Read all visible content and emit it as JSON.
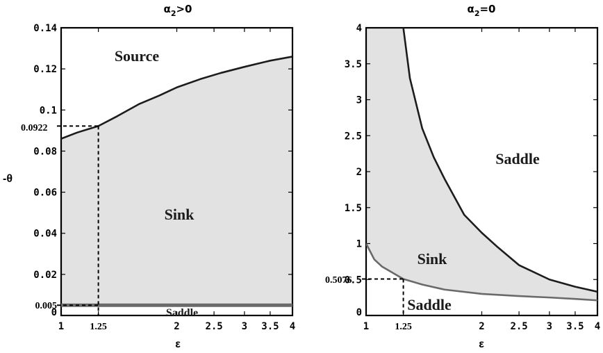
{
  "chart_data": [
    {
      "type": "area",
      "title": "α₂>0",
      "xlabel": "ε",
      "ylabel": "-θ",
      "xlim": [
        1,
        4
      ],
      "ylim": [
        0,
        0.14
      ],
      "xscale": "log",
      "xticks": [
        "1",
        "1.25",
        "2",
        "2.5",
        "3",
        "3.5",
        "4"
      ],
      "yticks": [
        "0",
        "0.005",
        "0.02",
        "0.04",
        "0.06",
        "0.08",
        "0.1",
        "0.12",
        "0.14"
      ],
      "regions": [
        "Source",
        "Sink",
        "Saddle"
      ],
      "series": [
        {
          "x": [
            1.0,
            1.1,
            1.25,
            1.4,
            1.6,
            1.8,
            2.0,
            2.3,
            2.6,
            3.0,
            3.5,
            4.0
          ],
          "y": [
            0.086,
            0.089,
            0.0922,
            0.097,
            0.103,
            0.107,
            0.111,
            0.115,
            0.118,
            0.121,
            0.124,
            0.126
          ]
        },
        {
          "x": [
            1.0,
            4.0
          ],
          "y": [
            0.005,
            0.005
          ]
        }
      ],
      "annotations": [
        {
          "x": 1.25,
          "y": 0.0922,
          "label": "0.0922"
        }
      ]
    },
    {
      "type": "area",
      "title": "α₂=0",
      "xlabel": "ε",
      "ylabel": "",
      "xlim": [
        1,
        4
      ],
      "ylim": [
        0,
        4
      ],
      "xscale": "log",
      "xticks": [
        "1",
        "1.25",
        "2",
        "2.5",
        "3",
        "3.5",
        "4"
      ],
      "yticks": [
        "0",
        "0.5",
        "1",
        "1.5",
        "2",
        "2.5",
        "3",
        "3.5",
        "4"
      ],
      "regions": [
        "Saddle",
        "Sink",
        "Saddle"
      ],
      "series": [
        {
          "x": [
            1.25,
            1.3,
            1.4,
            1.5,
            1.6,
            1.8,
            2.0,
            2.2,
            2.5,
            3.0,
            3.5,
            4.0
          ],
          "y": [
            4.0,
            3.3,
            2.6,
            2.2,
            1.9,
            1.4,
            1.15,
            0.95,
            0.7,
            0.5,
            0.4,
            0.33
          ]
        },
        {
          "x": [
            1.0,
            1.05,
            1.1,
            1.25,
            1.4,
            1.6,
            2.0,
            2.5,
            3.0,
            3.5,
            4.0
          ],
          "y": [
            1.0,
            0.78,
            0.68,
            0.5076,
            0.43,
            0.36,
            0.3,
            0.27,
            0.25,
            0.23,
            0.21
          ]
        }
      ],
      "annotations": [
        {
          "x": 1.25,
          "y": 0.5076,
          "label": "0.5076"
        }
      ]
    }
  ]
}
